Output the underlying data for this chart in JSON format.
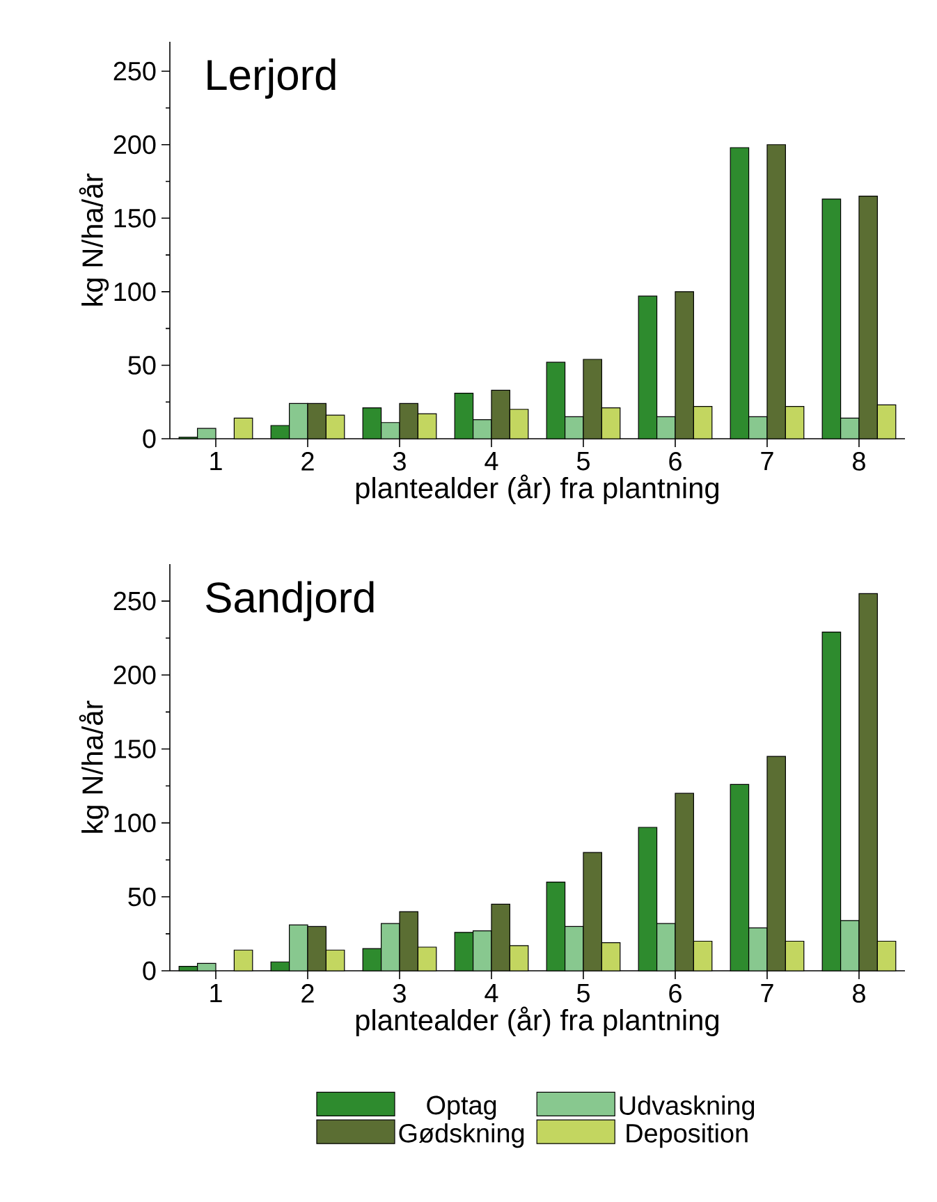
{
  "chart_data": [
    {
      "type": "bar",
      "title": "Lerjord",
      "xlabel": "plantealder (år) fra plantning",
      "ylabel": "kg N/ha/år",
      "categories": [
        "1",
        "2",
        "3",
        "4",
        "5",
        "6",
        "7",
        "8"
      ],
      "series": [
        {
          "color": "#2e8b2e",
          "values": [
            1,
            9,
            21,
            31,
            52,
            97,
            198,
            163
          ]
        },
        {
          "color": "#88c88f",
          "values": [
            7,
            24,
            11,
            13,
            15,
            15,
            15,
            14
          ]
        },
        {
          "color": "#5b6e33",
          "values": [
            null,
            24,
            24,
            33,
            54,
            100,
            200,
            165
          ]
        },
        {
          "color": "#c3d660",
          "values": [
            14,
            16,
            17,
            20,
            21,
            22,
            22,
            23
          ]
        }
      ],
      "ylim": [
        0,
        270
      ],
      "yticks": [
        0,
        50,
        100,
        150,
        200,
        250
      ]
    },
    {
      "type": "bar",
      "title": "Sandjord",
      "xlabel": "plantealder (år) fra plantning",
      "ylabel": "kg N/ha/år",
      "categories": [
        "1",
        "2",
        "3",
        "4",
        "5",
        "6",
        "7",
        "8"
      ],
      "series": [
        {
          "name": "Optag",
          "color": "#2e8b2e",
          "values": [
            3,
            6,
            15,
            26,
            60,
            97,
            126,
            229
          ]
        },
        {
          "name": "Udvaskning",
          "color": "#88c88f",
          "values": [
            5,
            31,
            32,
            27,
            30,
            32,
            29,
            34
          ]
        },
        {
          "name": "Gødskning",
          "color": "#5b6e33",
          "values": [
            null,
            30,
            40,
            45,
            80,
            120,
            145,
            255
          ]
        },
        {
          "name": "Deposition",
          "color": "#c3d660",
          "values": [
            14,
            14,
            16,
            17,
            19,
            20,
            20,
            20
          ]
        }
      ],
      "ylim": [
        0,
        275
      ],
      "yticks": [
        0,
        50,
        100,
        150,
        200,
        250
      ],
      "legend": "bottom"
    }
  ]
}
